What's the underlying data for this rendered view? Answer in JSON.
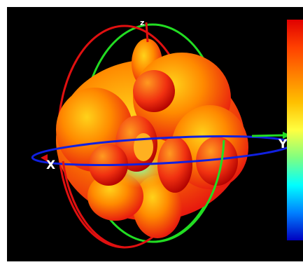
{
  "axes": {
    "x_label": "X",
    "y_label": "Y",
    "z_label": "z"
  },
  "colors": {
    "background": "#000000",
    "x_ring": "#e01010",
    "y_ring": "#22dd22",
    "z_ring": "#1020e0",
    "pattern_hot": "#e51010",
    "pattern_mid": "#ff8a00",
    "pattern_cool": "#ffd21a"
  },
  "colorbar": {
    "gradient": [
      "#e00000",
      "#ff4000",
      "#ff8000",
      "#ffc000",
      "#ffff40",
      "#80ff80",
      "#00ffff",
      "#0080ff",
      "#0000c0"
    ]
  }
}
